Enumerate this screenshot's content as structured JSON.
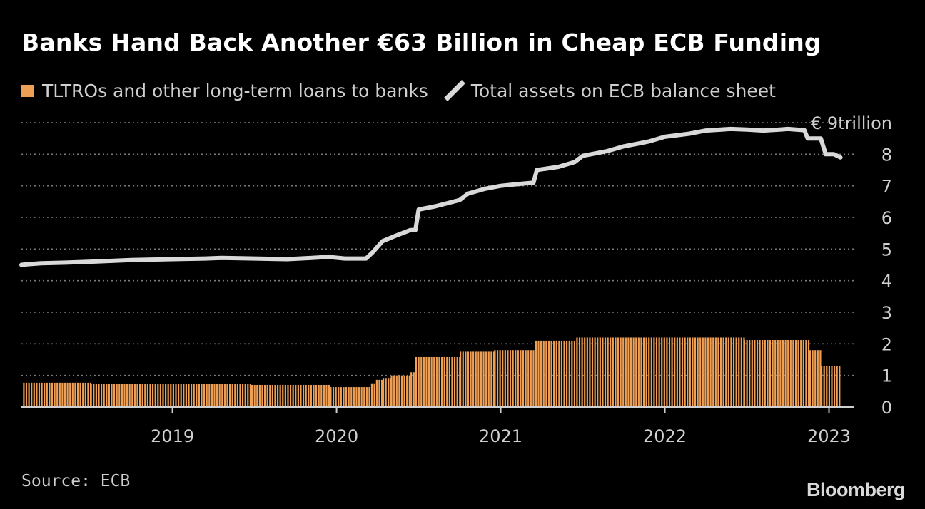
{
  "title": "Banks Hand Back Another €63 Billion in Cheap ECB Funding",
  "legend": {
    "bar_label": "TLTROs and other long-term loans to banks",
    "line_label": "Total assets on ECB balance sheet"
  },
  "source": "Source: ECB",
  "logo": "Bloomberg",
  "colors": {
    "bar": "#f0a054",
    "line": "#d9d9d9",
    "grid": "#7a7a7a",
    "axis_text": "#d0d0d0"
  },
  "chart_data": {
    "type": "bar",
    "ylim": [
      0,
      9
    ],
    "yticks": [
      {
        "value": 9,
        "label": "€ 9trillion"
      },
      {
        "value": 8,
        "label": "8"
      },
      {
        "value": 7,
        "label": "7"
      },
      {
        "value": 6,
        "label": "6"
      },
      {
        "value": 5,
        "label": "5"
      },
      {
        "value": 4,
        "label": "4"
      },
      {
        "value": 3,
        "label": "3"
      },
      {
        "value": 2,
        "label": "2"
      },
      {
        "value": 1,
        "label": "1"
      },
      {
        "value": 0,
        "label": "0"
      }
    ],
    "xlim": [
      2018.08,
      2023.15
    ],
    "xticks": [
      {
        "value": 2019,
        "label": "2019"
      },
      {
        "value": 2020,
        "label": "2020"
      },
      {
        "value": 2021,
        "label": "2021"
      },
      {
        "value": 2022,
        "label": "2022"
      },
      {
        "value": 2023,
        "label": "2023"
      }
    ],
    "grid": true,
    "legend_position": "top-left",
    "series": [
      {
        "kind": "bar",
        "steps": [
          {
            "from": 2018.09,
            "to": 2018.5,
            "value": 0.77
          },
          {
            "from": 2018.5,
            "to": 2019.48,
            "value": 0.74
          },
          {
            "from": 2019.48,
            "to": 2019.96,
            "value": 0.7
          },
          {
            "from": 2019.96,
            "to": 2020.21,
            "value": 0.63
          },
          {
            "from": 2020.21,
            "to": 2020.24,
            "value": 0.75
          },
          {
            "from": 2020.24,
            "to": 2020.28,
            "value": 0.86
          },
          {
            "from": 2020.28,
            "to": 2020.33,
            "value": 0.92
          },
          {
            "from": 2020.33,
            "to": 2020.45,
            "value": 1.0
          },
          {
            "from": 2020.45,
            "to": 2020.48,
            "value": 1.1
          },
          {
            "from": 2020.48,
            "to": 2020.75,
            "value": 1.58
          },
          {
            "from": 2020.75,
            "to": 2020.96,
            "value": 1.75
          },
          {
            "from": 2020.96,
            "to": 2021.21,
            "value": 1.8
          },
          {
            "from": 2021.21,
            "to": 2021.46,
            "value": 2.1
          },
          {
            "from": 2021.46,
            "to": 2022.48,
            "value": 2.2
          },
          {
            "from": 2022.48,
            "to": 2022.88,
            "value": 2.12
          },
          {
            "from": 2022.88,
            "to": 2022.95,
            "value": 1.8
          },
          {
            "from": 2022.95,
            "to": 2023.07,
            "value": 1.3
          }
        ]
      },
      {
        "kind": "line",
        "points": [
          [
            2018.08,
            4.5
          ],
          [
            2018.12,
            4.52
          ],
          [
            2018.2,
            4.55
          ],
          [
            2018.35,
            4.57
          ],
          [
            2018.5,
            4.6
          ],
          [
            2018.75,
            4.65
          ],
          [
            2019.0,
            4.68
          ],
          [
            2019.2,
            4.7
          ],
          [
            2019.3,
            4.72
          ],
          [
            2019.5,
            4.7
          ],
          [
            2019.7,
            4.68
          ],
          [
            2019.85,
            4.72
          ],
          [
            2019.95,
            4.75
          ],
          [
            2020.05,
            4.7
          ],
          [
            2020.18,
            4.7
          ],
          [
            2020.22,
            4.9
          ],
          [
            2020.28,
            5.25
          ],
          [
            2020.35,
            5.4
          ],
          [
            2020.45,
            5.6
          ],
          [
            2020.48,
            5.6
          ],
          [
            2020.5,
            6.25
          ],
          [
            2020.6,
            6.35
          ],
          [
            2020.75,
            6.55
          ],
          [
            2020.8,
            6.75
          ],
          [
            2020.9,
            6.9
          ],
          [
            2021.0,
            7.0
          ],
          [
            2021.1,
            7.05
          ],
          [
            2021.2,
            7.1
          ],
          [
            2021.22,
            7.5
          ],
          [
            2021.35,
            7.6
          ],
          [
            2021.45,
            7.75
          ],
          [
            2021.5,
            7.95
          ],
          [
            2021.65,
            8.1
          ],
          [
            2021.75,
            8.25
          ],
          [
            2021.9,
            8.4
          ],
          [
            2022.0,
            8.55
          ],
          [
            2022.15,
            8.65
          ],
          [
            2022.25,
            8.75
          ],
          [
            2022.4,
            8.8
          ],
          [
            2022.5,
            8.78
          ],
          [
            2022.6,
            8.75
          ],
          [
            2022.7,
            8.78
          ],
          [
            2022.75,
            8.8
          ],
          [
            2022.85,
            8.76
          ],
          [
            2022.87,
            8.5
          ],
          [
            2022.95,
            8.5
          ],
          [
            2022.98,
            8.0
          ],
          [
            2023.03,
            8.0
          ],
          [
            2023.07,
            7.9
          ]
        ]
      }
    ]
  }
}
